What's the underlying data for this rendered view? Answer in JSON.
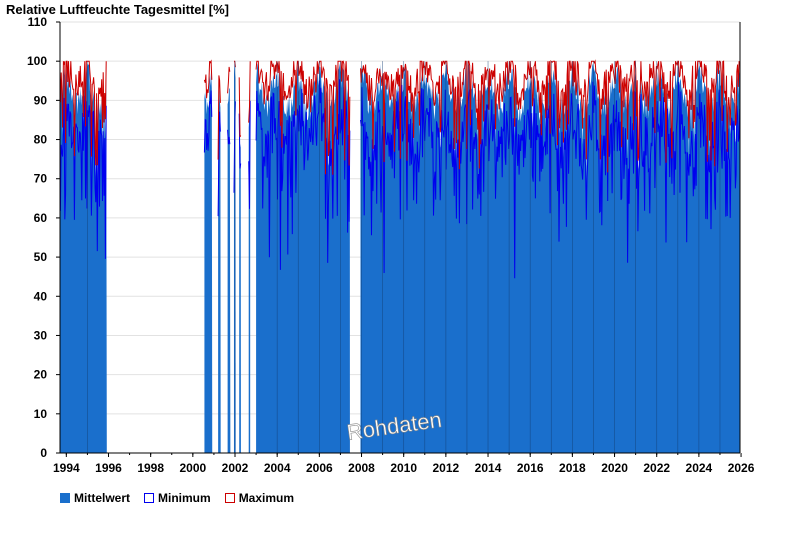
{
  "chart_data": {
    "type": "bar",
    "title": "Relative Luftfeuchte Tagesmittel [%]",
    "ylim": [
      0,
      110
    ],
    "yticks": [
      0,
      10,
      20,
      30,
      40,
      50,
      60,
      70,
      80,
      90,
      100,
      110
    ],
    "xlim": [
      1993.7,
      2025.95
    ],
    "xticks": [
      1994,
      1996,
      1998,
      2000,
      2002,
      2004,
      2006,
      2008,
      2010,
      2012,
      2014,
      2016,
      2018,
      2020,
      2022,
      2024,
      2026
    ],
    "watermark": "Rohdaten",
    "colors": {
      "mittelwert": "#1a6fcc",
      "minimum": "#0000ee",
      "maximum": "#cc0000"
    },
    "legend": [
      {
        "key": "mittelwert",
        "label": "Mittelwert"
      },
      {
        "key": "minimum",
        "label": "Minimum"
      },
      {
        "key": "maximum",
        "label": "Maximum"
      }
    ],
    "data_periods": [
      {
        "from": 1993.72,
        "to": 1995.92
      },
      {
        "from": 2000.55,
        "to": 2000.92
      },
      {
        "from": 2001.2,
        "to": 2001.32
      },
      {
        "from": 2001.65,
        "to": 2001.78
      },
      {
        "from": 2001.95,
        "to": 2002.03
      },
      {
        "from": 2002.2,
        "to": 2002.28
      },
      {
        "from": 2002.65,
        "to": 2002.72
      },
      {
        "from": 2003.0,
        "to": 2007.45
      },
      {
        "from": 2007.95,
        "to": 2025.95
      }
    ],
    "series": [
      {
        "name": "Mittelwert",
        "typical_range": [
          80,
          99
        ]
      },
      {
        "name": "Minimum",
        "typical_range": [
          45,
          98
        ]
      },
      {
        "name": "Maximum",
        "typical_range": [
          96,
          100
        ]
      }
    ]
  }
}
